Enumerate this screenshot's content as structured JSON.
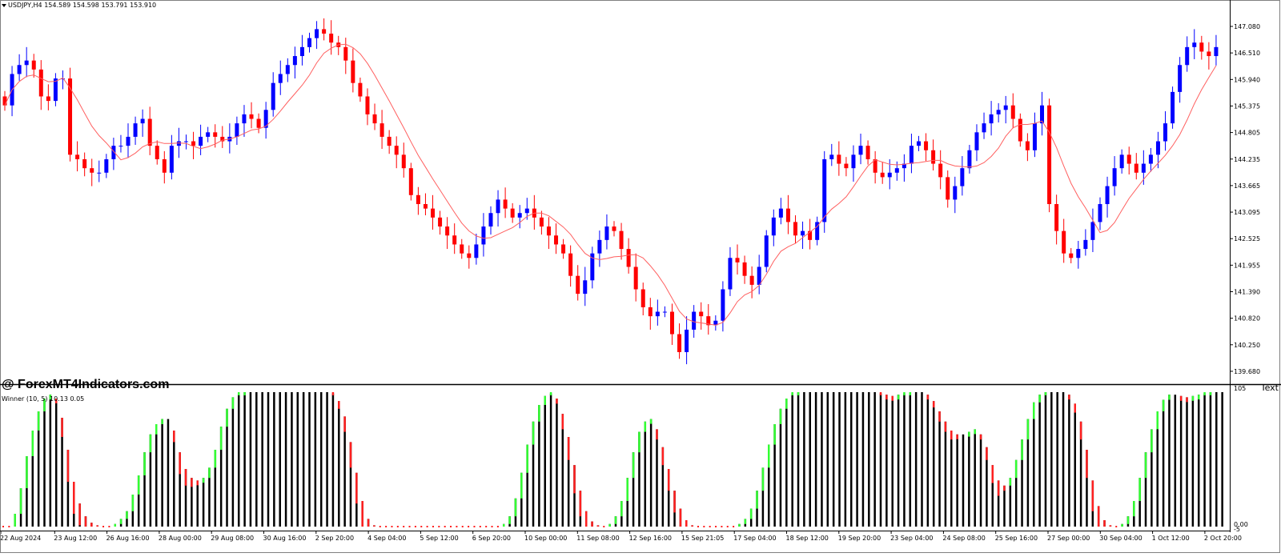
{
  "header": {
    "symbol": "USDJPY,H4",
    "ohlc": "154.589 154.598 153.791 153.910"
  },
  "watermark": "@ ForexMT4Indicators.com",
  "text_object_label": "Text",
  "indicator": {
    "label": "Winner (10, 5)",
    "values": "10.13 0.05"
  },
  "colors": {
    "bull": "#0000ff",
    "bear": "#ff0000",
    "ma": "#ff6060",
    "hist_up": "#33ff33",
    "hist_down": "#ff2020",
    "hist_base": "#000000",
    "frame": "#808080"
  },
  "chart_data": [
    {
      "type": "candlestick",
      "symbol": "USDJPY",
      "timeframe": "H4",
      "ylim": [
        139.4,
        147.5
      ],
      "y_ticks": [
        "147.080",
        "146.510",
        "145.940",
        "145.375",
        "144.805",
        "144.235",
        "143.665",
        "143.095",
        "142.525",
        "141.955",
        "141.390",
        "140.820",
        "140.250",
        "139.680"
      ],
      "x_ticks": [
        "22 Aug 2024",
        "23 Aug 12:00",
        "26 Aug 16:00",
        "28 Aug 00:00",
        "29 Aug 08:00",
        "30 Aug 16:00",
        "2 Sep 20:00",
        "4 Sep 04:00",
        "5 Sep 12:00",
        "6 Sep 20:00",
        "10 Sep 00:00",
        "11 Sep 08:00",
        "12 Sep 16:00",
        "15 Sep 21:05",
        "17 Sep 04:00",
        "18 Sep 12:00",
        "19 Sep 20:00",
        "23 Sep 04:00",
        "24 Sep 08:00",
        "25 Sep 16:00",
        "27 Sep 00:00",
        "30 Sep 04:00",
        "1 Oct 12:00",
        "2 Oct 20:00"
      ],
      "close": [
        145.4,
        146.1,
        146.3,
        146.4,
        146.2,
        145.6,
        145.5,
        146.0,
        146.0,
        144.3,
        144.2,
        144.0,
        143.9,
        143.9,
        144.2,
        144.5,
        144.5,
        144.7,
        145.0,
        145.1,
        144.5,
        144.2,
        143.9,
        144.5,
        144.6,
        144.6,
        144.5,
        144.7,
        144.8,
        144.7,
        144.6,
        144.7,
        145.0,
        145.2,
        145.1,
        144.9,
        145.3,
        145.9,
        146.1,
        146.3,
        146.5,
        146.7,
        146.9,
        147.1,
        147.0,
        146.8,
        146.7,
        146.4,
        145.9,
        145.6,
        145.2,
        145.0,
        144.7,
        144.5,
        144.3,
        144.0,
        143.4,
        143.2,
        143.1,
        142.9,
        142.7,
        142.5,
        142.3,
        142.1,
        142.0,
        142.3,
        142.7,
        143.0,
        143.3,
        143.1,
        142.9,
        143.0,
        143.1,
        142.9,
        142.7,
        142.5,
        142.3,
        142.1,
        141.6,
        141.2,
        141.5,
        142.1,
        142.4,
        142.7,
        142.6,
        142.2,
        141.8,
        141.3,
        140.9,
        140.7,
        140.8,
        140.8,
        140.3,
        139.9,
        140.4,
        140.8,
        140.7,
        140.5,
        140.6,
        141.3,
        142.0,
        141.9,
        141.6,
        141.4,
        141.8,
        142.5,
        142.9,
        143.1,
        142.8,
        142.5,
        142.6,
        142.4,
        142.8,
        144.2,
        144.3,
        144.1,
        144.0,
        144.3,
        144.5,
        144.2,
        143.9,
        143.8,
        143.9,
        144.0,
        144.1,
        144.5,
        144.6,
        144.4,
        144.1,
        143.8,
        143.3,
        143.6,
        144.0,
        144.4,
        144.8,
        145.0,
        145.2,
        145.3,
        145.4,
        145.1,
        144.6,
        144.4,
        145.0,
        145.4,
        143.2,
        142.6,
        142.1,
        142.0,
        142.2,
        142.4,
        142.8,
        143.2,
        143.6,
        144.0,
        144.3,
        144.1,
        143.9,
        144.1,
        144.3,
        144.6,
        145.0,
        145.7,
        146.3,
        146.7,
        146.8,
        146.6,
        146.5,
        146.7
      ],
      "ma_last": 146.1
    },
    {
      "type": "histogram",
      "name": "Winner (10, 5)",
      "ylim": [
        0,
        105
      ],
      "y_ticks": [
        "105",
        "0.00",
        "-5"
      ],
      "values": [
        0,
        0,
        10,
        30,
        55,
        75,
        90,
        100,
        103,
        100,
        85,
        60,
        35,
        18,
        8,
        3,
        1,
        0,
        0,
        2,
        6,
        12,
        25,
        40,
        58,
        72,
        80,
        84,
        84,
        75,
        58,
        45,
        38,
        36,
        38,
        46,
        60,
        78,
        92,
        101,
        104,
        105,
        105,
        105,
        105,
        105,
        105,
        105,
        105,
        105,
        105,
        105,
        105,
        105,
        105,
        105,
        104,
        98,
        86,
        66,
        42,
        20,
        6,
        1,
        0,
        0,
        0,
        0,
        0,
        0,
        0,
        0,
        0,
        0,
        0,
        0,
        0,
        0,
        0,
        0,
        0,
        0,
        0,
        0,
        0,
        2,
        8,
        22,
        42,
        64,
        82,
        95,
        102,
        104,
        100,
        88,
        70,
        48,
        28,
        12,
        4,
        1,
        0,
        2,
        8,
        20,
        38,
        58,
        74,
        82,
        84,
        76,
        62,
        45,
        28,
        14,
        5,
        1,
        0,
        0,
        0,
        0,
        0,
        0,
        0,
        2,
        6,
        14,
        28,
        46,
        64,
        80,
        92,
        100,
        104,
        105,
        105,
        105,
        105,
        105,
        105,
        105,
        105,
        105,
        105,
        105,
        105,
        105,
        105,
        104,
        103,
        102,
        103,
        104,
        105,
        105,
        105,
        103,
        98,
        90,
        82,
        75,
        72,
        72,
        74,
        76,
        72,
        62,
        48,
        36,
        32,
        38,
        52,
        68,
        84,
        97,
        103,
        105,
        105,
        105,
        105,
        103,
        96,
        82,
        60,
        36,
        16,
        5,
        1,
        0,
        2,
        8,
        20,
        38,
        58,
        76,
        90,
        99,
        103,
        103,
        102,
        101,
        102,
        103,
        104,
        105,
        105,
        105
      ]
    }
  ]
}
